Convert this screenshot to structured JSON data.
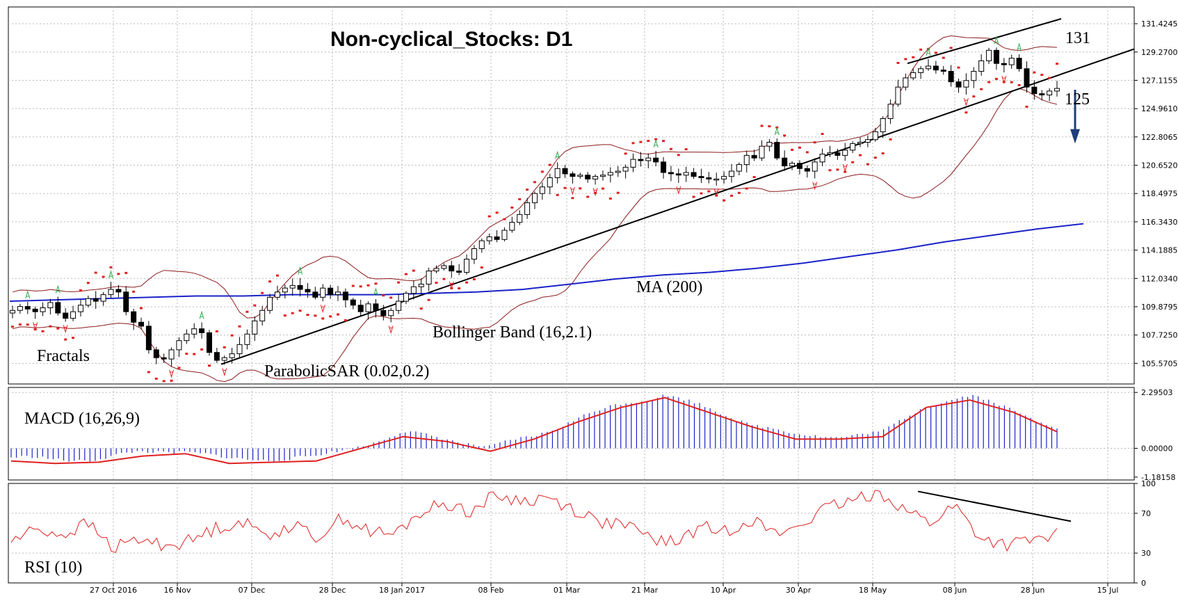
{
  "chart_data": {
    "type": "line",
    "title": "Non-cyclical_Stocks: D1",
    "x_labels": [
      "27 Oct 2016",
      "16 Nov",
      "07 Dec",
      "28 Dec",
      "18 Jan 2017",
      "08 Feb",
      "01 Mar",
      "21 Mar",
      "10 Apr",
      "30 Apr",
      "18 May",
      "08 Jun",
      "28 Jun",
      "15 Jul"
    ],
    "price_axis": {
      "ticks": [
        "131.4245",
        "129.2700",
        "127.1155",
        "124.9610",
        "122.8065",
        "120.6520",
        "118.4975",
        "116.3430",
        "114.1885",
        "112.0340",
        "109.8795",
        "107.7250",
        "105.5705"
      ],
      "range": [
        104.0,
        132.7
      ]
    },
    "macd_axis": {
      "ticks": [
        "2.29503",
        "0.00000",
        "-1.18158"
      ],
      "range": [
        -1.3,
        2.5
      ]
    },
    "rsi_axis": {
      "ticks": [
        "100",
        "70",
        "30",
        "0"
      ],
      "range": [
        0,
        100
      ]
    },
    "annotations": {
      "level_high": "131",
      "level_low": "125",
      "ma": "MA (200)",
      "bollinger": "Bollinger Band (16,2.1)",
      "sar": "ParabolicSAR (0.02,0.2)",
      "fractals": "Fractals",
      "macd": "MACD (16,26,9)",
      "rsi": "RSI (10)"
    },
    "series": [
      {
        "name": "Price",
        "values": [
          109.6,
          109.9,
          109.7,
          109.5,
          109.8,
          110.2,
          109.4,
          109.0,
          109.5,
          110.0,
          110.5,
          110.3,
          110.8,
          111.2,
          111.0,
          109.5,
          108.7,
          108.4,
          106.6,
          106.0,
          105.9,
          106.6,
          107.3,
          107.8,
          108.2,
          107.9,
          106.4,
          105.8,
          106.0,
          106.3,
          107.0,
          107.8,
          108.8,
          109.6,
          110.6,
          111.0,
          111.3,
          111.5,
          111.2,
          111.0,
          110.6,
          111.3,
          110.8,
          111.0,
          110.4,
          110.0,
          109.5,
          110.1,
          109.6,
          109.2,
          109.6,
          110.3,
          110.9,
          111.4,
          111.6,
          112.6,
          112.8,
          113.0,
          112.6,
          112.5,
          113.5,
          114.3,
          114.9,
          115.2,
          115.0,
          115.7,
          116.3,
          116.9,
          117.8,
          118.5,
          119.0,
          119.7,
          120.4,
          120.0,
          119.8,
          119.9,
          119.6,
          119.8,
          119.9,
          120.1,
          120.2,
          120.5,
          121.1,
          121.0,
          121.2,
          120.9,
          120.1,
          120.0,
          119.9,
          120.1,
          119.8,
          119.7,
          119.6,
          119.6,
          119.8,
          120.2,
          120.7,
          121.4,
          121.2,
          122.1,
          122.4,
          121.2,
          120.6,
          120.8,
          120.4,
          120.2,
          120.9,
          121.5,
          121.6,
          121.4,
          121.8,
          122.3,
          122.4,
          122.6,
          123.2,
          124.2,
          125.3,
          126.6,
          127.3,
          127.7,
          128.0,
          128.2,
          127.9,
          127.8,
          127.0,
          126.6,
          127.1,
          127.8,
          128.6,
          129.4,
          128.4,
          128.3,
          128.8,
          128.0,
          126.6,
          126.1,
          126.0,
          126.3,
          126.5
        ]
      },
      {
        "name": "MA (200)",
        "values": [
          110.3,
          110.4,
          110.5,
          110.6,
          110.7,
          110.7,
          110.8,
          110.8,
          110.8,
          110.9,
          111.0,
          111.2,
          111.6,
          112.0,
          112.3,
          112.5,
          112.8,
          113.2,
          113.7,
          114.2,
          114.8,
          115.3,
          115.8,
          116.2
        ]
      },
      {
        "name": "MACD Signal",
        "values": [
          -0.4,
          -0.5,
          -0.45,
          -0.2,
          -0.1,
          -0.5,
          -0.45,
          -0.4,
          0.1,
          0.6,
          0.4,
          0.0,
          0.5,
          1.2,
          1.8,
          2.2,
          1.6,
          1.0,
          0.5,
          0.5,
          0.6,
          1.8,
          2.1,
          1.6,
          0.8
        ]
      },
      {
        "name": "RSI (10)",
        "values": [
          42,
          55,
          48,
          60,
          35,
          44,
          38,
          42,
          55,
          62,
          48,
          58,
          46,
          66,
          52,
          48,
          70,
          80,
          72,
          88,
          82,
          86,
          75,
          62,
          58,
          46,
          40,
          56,
          52,
          65,
          48,
          60,
          75,
          82,
          92,
          75,
          60,
          78,
          45,
          38,
          42,
          48
        ]
      }
    ]
  }
}
